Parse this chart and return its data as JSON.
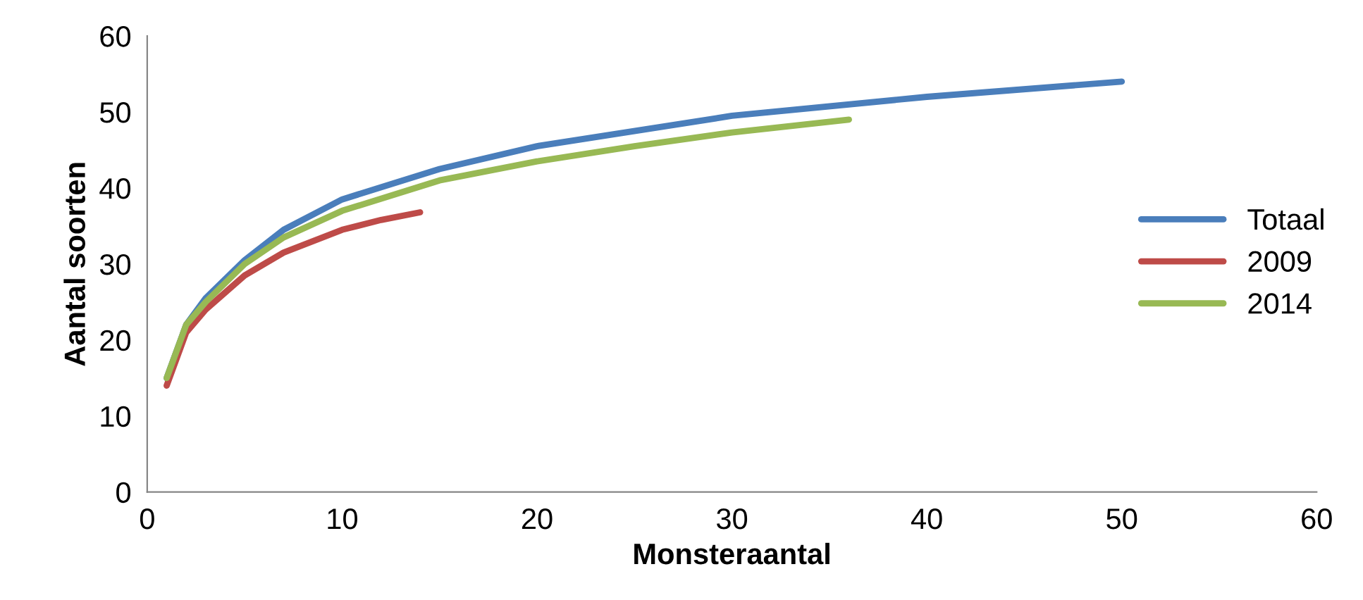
{
  "chart_data": {
    "type": "line",
    "xlabel": "Monsteraantal",
    "ylabel": "Aantal soorten",
    "xlim": [
      0,
      60
    ],
    "xticks": [
      0,
      10,
      20,
      30,
      40,
      50,
      60
    ],
    "ylim": [
      0,
      60
    ],
    "yticks": [
      0,
      10,
      20,
      30,
      40,
      50,
      60
    ],
    "grid": false,
    "legend": "right",
    "marker": "none",
    "line_style": "solid",
    "series": [
      {
        "name": "Totaal",
        "color": "#4a7ebb",
        "x": [
          1,
          2,
          3,
          5,
          7,
          10,
          15,
          20,
          30,
          40,
          50
        ],
        "values": [
          15,
          22,
          25.5,
          30.5,
          34.5,
          38.5,
          42.5,
          45.5,
          49.5,
          52,
          54
        ]
      },
      {
        "name": "2009",
        "color": "#be4b48",
        "x": [
          1,
          2,
          3,
          5,
          7,
          10,
          12,
          14
        ],
        "values": [
          14,
          21,
          24,
          28.5,
          31.5,
          34.5,
          35.8,
          36.8
        ]
      },
      {
        "name": "2014",
        "color": "#98b954",
        "x": [
          1,
          2,
          3,
          5,
          7,
          10,
          15,
          20,
          25,
          30,
          36
        ],
        "values": [
          15,
          22,
          25,
          30,
          33.5,
          37,
          41,
          43.5,
          45.5,
          47.3,
          49
        ]
      }
    ]
  }
}
